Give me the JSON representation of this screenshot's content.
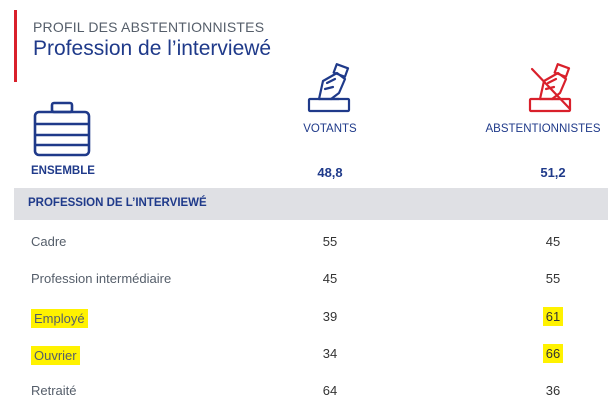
{
  "header": {
    "kicker": "PROFIL DES ABSTENTIONNISTES",
    "title": "Profession de l’interviewé"
  },
  "icons": {
    "category": "briefcase-icon",
    "votants": "ballot-hand-icon",
    "abstentionnistes": "ballot-hand-crossed-icon"
  },
  "colors": {
    "accent": "#d9202b",
    "primary": "#1f3a8a",
    "highlight": "#fff200",
    "section_bg": "#dfe0e4"
  },
  "chart_data": {
    "type": "table",
    "columns": [
      "VOTANTS",
      "ABSTENTIONNISTES"
    ],
    "ensemble": {
      "label": "ENSEMBLE",
      "values": [
        "48,8",
        "51,2"
      ]
    },
    "section": "PROFESSION DE L’INTERVIEWÉ",
    "rows": [
      {
        "label": "Cadre",
        "values": [
          "55",
          "45"
        ]
      },
      {
        "label": "Profession intermédiaire",
        "values": [
          "45",
          "55"
        ]
      },
      {
        "label": "Employé",
        "values": [
          "39",
          "61"
        ]
      },
      {
        "label": "Ouvrier",
        "values": [
          "34",
          "66"
        ]
      },
      {
        "label": "Retraité",
        "values": [
          "64",
          "36"
        ]
      }
    ],
    "highlighted_rows": [
      "Employé",
      "Ouvrier"
    ]
  }
}
